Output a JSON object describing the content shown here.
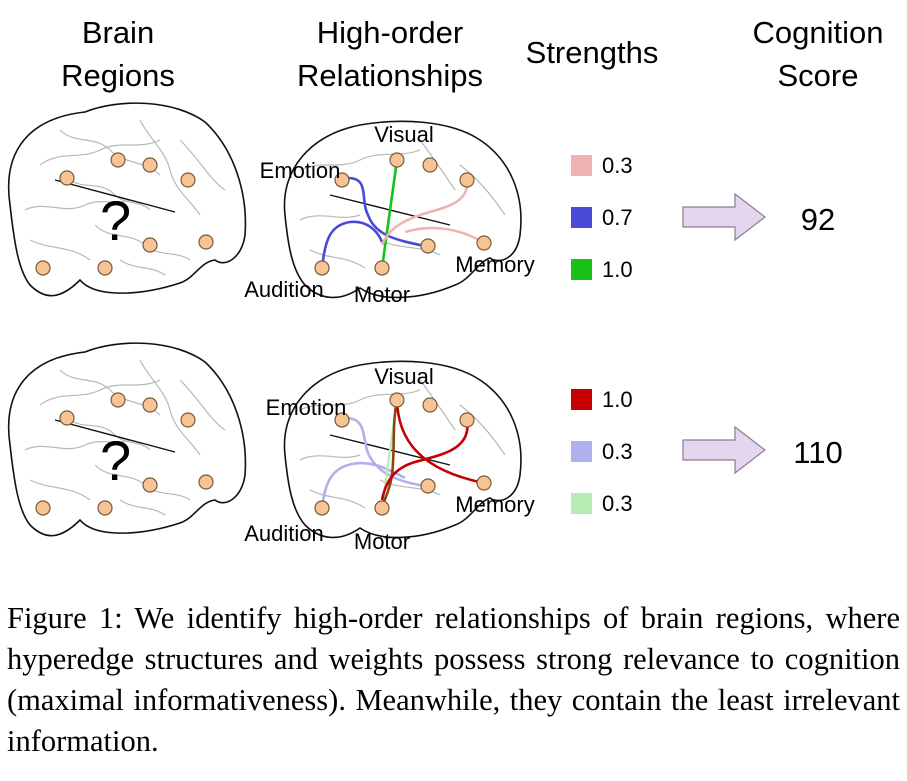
{
  "headers": {
    "brain_regions": [
      "Brain",
      "Regions"
    ],
    "relationships": [
      "High-order",
      "Relationships"
    ],
    "strengths": "Strengths",
    "cognition": [
      "Cognition",
      "Score"
    ]
  },
  "unknown_mark": "?",
  "region_labels": {
    "visual": "Visual",
    "emotion": "Emotion",
    "memory": "Memory",
    "audition": "Audition",
    "motor": "Motor"
  },
  "rows": [
    {
      "legend": [
        {
          "value": "0.3",
          "color": "#f0b3b3"
        },
        {
          "value": "0.7",
          "color": "#4a4ad8"
        },
        {
          "value": "1.0",
          "color": "#17c117"
        }
      ],
      "score": "92"
    },
    {
      "legend": [
        {
          "value": "1.0",
          "color": "#c40000"
        },
        {
          "value": "0.3",
          "color": "#b0b0ee"
        },
        {
          "value": "0.3",
          "color": "#b4ecb4"
        }
      ],
      "score": "110"
    }
  ],
  "colors": {
    "node_fill": "#f6c495",
    "arrow_fill": "#e4d6ee",
    "row2_motor_visual_edge": "#8b4513"
  },
  "caption": "Figure 1:  We identify high-order relationships of brain regions, where hyperedge structures and weights possess strong relevance to cognition (maximal informativeness). Meanwhile, they contain the least irrelevant information."
}
